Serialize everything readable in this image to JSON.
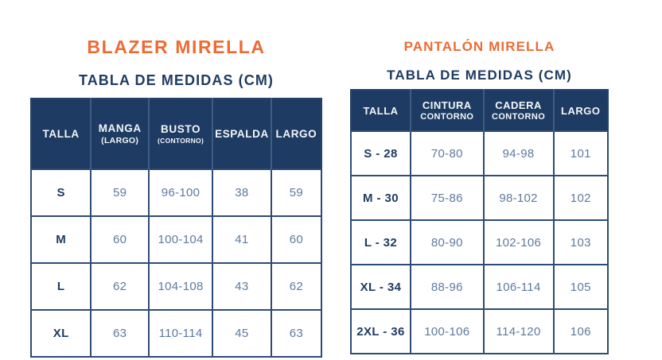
{
  "colors": {
    "accent_orange": "#ED6B33",
    "navy": "#1E3C63",
    "cell_value_text": "#5D7A9E",
    "header_text": "#F4F6F9",
    "background": "#FFFFFF"
  },
  "left_panel": {
    "title": "BLAZER MIRELLA",
    "subtitle": "TABLA DE MEDIDAS (CM)",
    "table": {
      "headers": [
        {
          "label": "TALLA",
          "sub": ""
        },
        {
          "label": "MANGA",
          "sub": "(LARGO)"
        },
        {
          "label": "BUSTO",
          "sub": "(CONTORNO)"
        },
        {
          "label": "ESPALDA",
          "sub": ""
        },
        {
          "label": "LARGO",
          "sub": ""
        }
      ],
      "rows": [
        {
          "talla": "S",
          "values": [
            "59",
            "96-100",
            "38",
            "59"
          ]
        },
        {
          "talla": "M",
          "values": [
            "60",
            "100-104",
            "41",
            "60"
          ]
        },
        {
          "talla": "L",
          "values": [
            "62",
            "104-108",
            "43",
            "62"
          ]
        },
        {
          "talla": "XL",
          "values": [
            "63",
            "110-114",
            "45",
            "63"
          ]
        }
      ]
    }
  },
  "right_panel": {
    "title": "PANTALÓN MIRELLA",
    "subtitle": "TABLA DE MEDIDAS (CM)",
    "table": {
      "headers": [
        {
          "label": "TALLA",
          "sub": ""
        },
        {
          "label": "CINTURA",
          "sub": "CONTORNO"
        },
        {
          "label": "CADERA",
          "sub": "CONTORNO"
        },
        {
          "label": "LARGO",
          "sub": ""
        }
      ],
      "rows": [
        {
          "talla": "S - 28",
          "values": [
            "70-80",
            "94-98",
            "101"
          ]
        },
        {
          "talla": "M - 30",
          "values": [
            "75-86",
            "98-102",
            "102"
          ]
        },
        {
          "talla": "L - 32",
          "values": [
            "80-90",
            "102-106",
            "103"
          ]
        },
        {
          "talla": "XL - 34",
          "values": [
            "88-96",
            "106-114",
            "105"
          ]
        },
        {
          "talla": "2XL - 36",
          "values": [
            "100-106",
            "114-120",
            "106"
          ]
        }
      ]
    }
  },
  "chart_data": [
    {
      "type": "table",
      "title": "BLAZER MIRELLA",
      "subtitle": "TABLA DE MEDIDAS (CM)",
      "columns": [
        "TALLA",
        "MANGA (LARGO)",
        "BUSTO (CONTORNO)",
        "ESPALDA",
        "LARGO"
      ],
      "rows": [
        [
          "S",
          "59",
          "96-100",
          "38",
          "59"
        ],
        [
          "M",
          "60",
          "100-104",
          "41",
          "60"
        ],
        [
          "L",
          "62",
          "104-108",
          "43",
          "62"
        ],
        [
          "XL",
          "63",
          "110-114",
          "45",
          "63"
        ]
      ]
    },
    {
      "type": "table",
      "title": "PANTALÓN MIRELLA",
      "subtitle": "TABLA DE MEDIDAS (CM)",
      "columns": [
        "TALLA",
        "CINTURA CONTORNO",
        "CADERA CONTORNO",
        "LARGO"
      ],
      "rows": [
        [
          "S - 28",
          "70-80",
          "94-98",
          "101"
        ],
        [
          "M - 30",
          "75-86",
          "98-102",
          "102"
        ],
        [
          "L - 32",
          "80-90",
          "102-106",
          "103"
        ],
        [
          "XL - 34",
          "88-96",
          "106-114",
          "105"
        ],
        [
          "2XL - 36",
          "100-106",
          "114-120",
          "106"
        ]
      ]
    }
  ]
}
